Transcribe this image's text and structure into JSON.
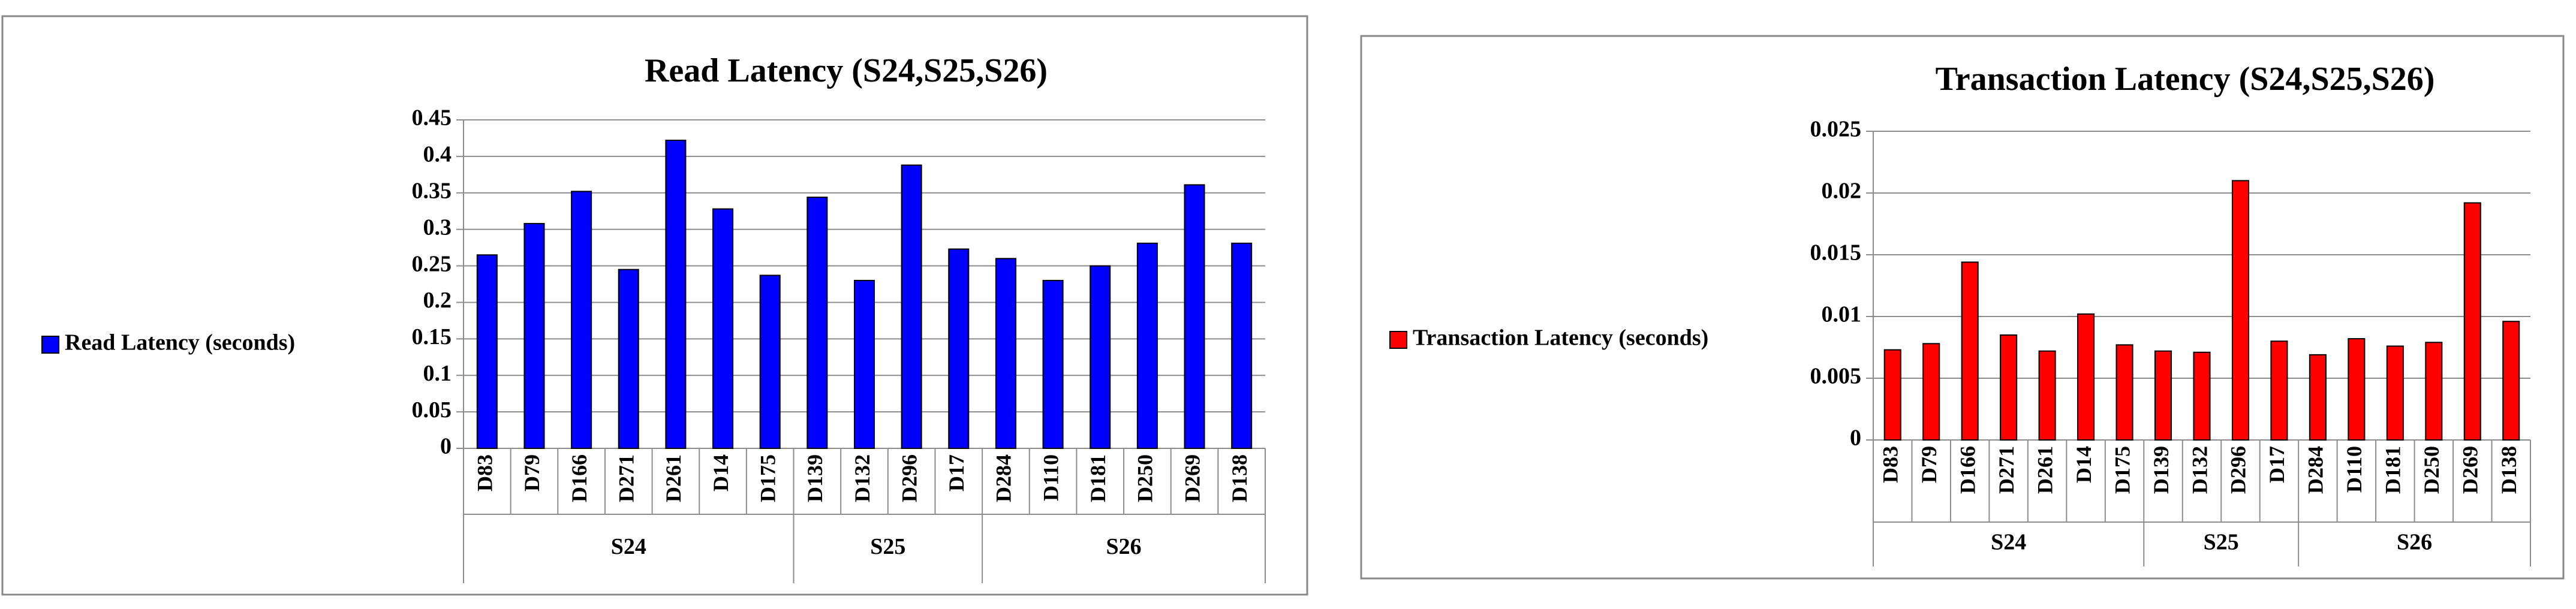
{
  "chart_data": [
    {
      "type": "bar",
      "title": "Read Latency (S24,S25,S26)",
      "categories": [
        "D83",
        "D79",
        "D166",
        "D271",
        "D261",
        "D14",
        "D175",
        "D139",
        "D132",
        "D296",
        "D17",
        "D284",
        "D110",
        "D181",
        "D250",
        "D269",
        "D138"
      ],
      "groups": [
        {
          "label": "S24",
          "size": 7
        },
        {
          "label": "S25",
          "size": 4
        },
        {
          "label": "S26",
          "size": 6
        }
      ],
      "series": [
        {
          "name": "Read Latency (seconds)",
          "color": "#0000ff",
          "values": [
            0.265,
            0.308,
            0.352,
            0.245,
            0.422,
            0.328,
            0.237,
            0.344,
            0.23,
            0.388,
            0.273,
            0.26,
            0.23,
            0.25,
            0.281,
            0.361,
            0.281
          ]
        }
      ],
      "ylim": [
        0,
        0.45
      ],
      "yticks": [
        0,
        0.05,
        0.1,
        0.15,
        0.2,
        0.25,
        0.3,
        0.35,
        0.4,
        0.45
      ],
      "grid": true,
      "legend": "left"
    },
    {
      "type": "bar",
      "title": "Transaction Latency (S24,S25,S26)",
      "categories": [
        "D83",
        "D79",
        "D166",
        "D271",
        "D261",
        "D14",
        "D175",
        "D139",
        "D132",
        "D296",
        "D17",
        "D284",
        "D110",
        "D181",
        "D250",
        "D269",
        "D138"
      ],
      "groups": [
        {
          "label": "S24",
          "size": 7
        },
        {
          "label": "S25",
          "size": 4
        },
        {
          "label": "S26",
          "size": 6
        }
      ],
      "series": [
        {
          "name": "Transaction Latency (seconds)",
          "color": "#ff0000",
          "values": [
            0.0073,
            0.0078,
            0.0144,
            0.0085,
            0.0072,
            0.0102,
            0.0077,
            0.0072,
            0.0071,
            0.021,
            0.008,
            0.0069,
            0.0082,
            0.0076,
            0.0079,
            0.0192,
            0.0096
          ]
        }
      ],
      "ylim": [
        0,
        0.025
      ],
      "yticks": [
        0,
        0.005,
        0.01,
        0.015,
        0.02,
        0.025
      ],
      "grid": true,
      "legend": "left"
    }
  ]
}
